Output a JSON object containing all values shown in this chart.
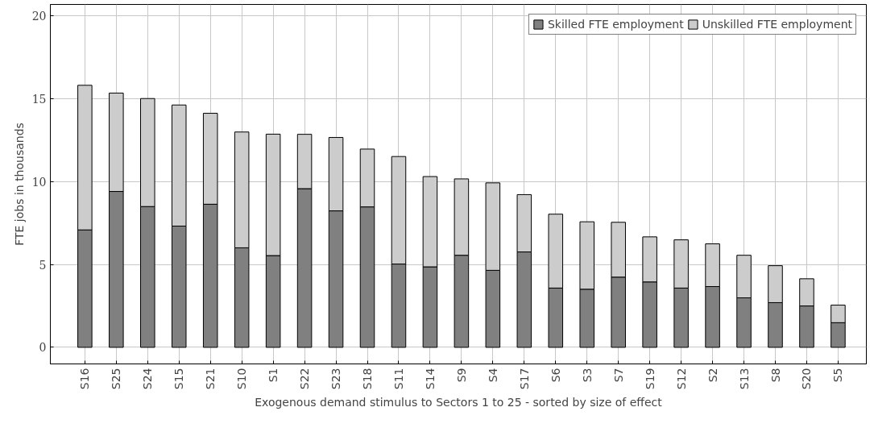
{
  "chart_data": {
    "type": "bar",
    "stacked": true,
    "xlabel": "Exogenous demand stimulus to Sectors 1 to 25 - sorted by size of effect",
    "ylabel": "FTE jobs in thousands",
    "categories": [
      "S16",
      "S25",
      "S24",
      "S15",
      "S21",
      "S10",
      "S1",
      "S22",
      "S23",
      "S18",
      "S11",
      "S14",
      "S9",
      "S4",
      "S17",
      "S6",
      "S3",
      "S7",
      "S19",
      "S12",
      "S2",
      "S13",
      "S8",
      "S20",
      "S5"
    ],
    "series": [
      {
        "name": "Skilled FTE employment",
        "color": "#808080",
        "values": [
          7.09,
          9.41,
          8.5,
          7.32,
          8.64,
          6.01,
          5.54,
          9.58,
          8.24,
          8.48,
          5.03,
          4.86,
          5.56,
          4.65,
          5.76,
          3.58,
          3.51,
          4.24,
          3.95,
          3.58,
          3.67,
          2.99,
          2.7,
          2.5,
          1.49
        ]
      },
      {
        "name": "Unskilled FTE employment",
        "color": "#cccccc",
        "values": [
          8.73,
          5.94,
          6.52,
          7.31,
          5.49,
          6.99,
          7.33,
          3.28,
          4.43,
          3.49,
          6.49,
          5.45,
          4.61,
          5.28,
          3.46,
          4.46,
          4.07,
          3.31,
          2.72,
          2.91,
          2.58,
          2.57,
          2.23,
          1.64,
          1.06
        ]
      }
    ],
    "ylim": [
      -1,
      20.7
    ],
    "yticks": [
      0,
      5,
      10,
      15,
      20
    ],
    "grid": true,
    "legend": "top right"
  }
}
